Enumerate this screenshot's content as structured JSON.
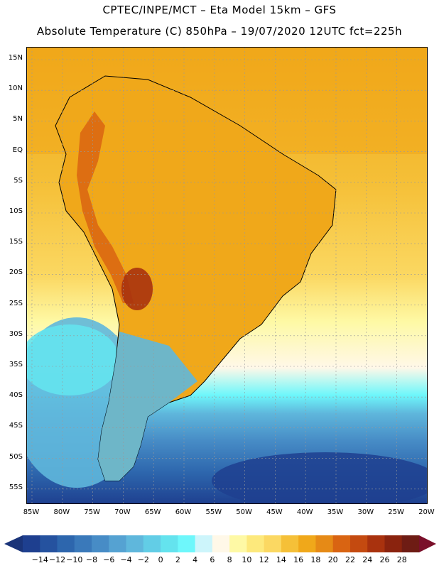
{
  "header": {
    "title_line1": "CPTEC/INPE/MCT –  Eta Model 15km – GFS",
    "title_line2": "Absolute Temperature (C) 850hPa – 19/07/2020 12UTC fct=225h"
  },
  "axes": {
    "latitude_labels": [
      "15N",
      "10N",
      "5N",
      "EQ",
      "5S",
      "10S",
      "15S",
      "20S",
      "25S",
      "30S",
      "35S",
      "40S",
      "45S",
      "50S",
      "55S"
    ],
    "longitude_labels": [
      "85W",
      "80W",
      "75W",
      "70W",
      "65W",
      "60W",
      "55W",
      "50W",
      "45W",
      "40W",
      "35W",
      "30W",
      "25W",
      "20W"
    ],
    "lat_range": [
      -58,
      17
    ],
    "lon_range": [
      -86,
      -20
    ]
  },
  "colorbar": {
    "unit": "C",
    "levels": [
      -14,
      -12,
      -10,
      -8,
      -6,
      -4,
      -2,
      0,
      2,
      4,
      6,
      8,
      10,
      12,
      14,
      16,
      18,
      20,
      22,
      24,
      26,
      28
    ],
    "labels": [
      "−14",
      "−12",
      "−10",
      "−8",
      "−6",
      "−4",
      "−2",
      "0",
      "2",
      "4",
      "6",
      "8",
      "10",
      "12",
      "14",
      "16",
      "18",
      "20",
      "22",
      "24",
      "26",
      "28"
    ],
    "colors": [
      "#1e3f8f",
      "#25529f",
      "#2d66ad",
      "#3a79ba",
      "#478cc6",
      "#55a2d2",
      "#5fb7dc",
      "#62cde6",
      "#64e3ee",
      "#6ef7fb",
      "#cdf5fb",
      "#fff8e8",
      "#fef9a5",
      "#fde97c",
      "#fbd862",
      "#f5c038",
      "#f0a81a",
      "#e68a16",
      "#d96412",
      "#c44a10",
      "#a9320e",
      "#8a230e",
      "#6e1c14"
    ],
    "under_color": "#1a3479",
    "over_color": "#7a0f2a"
  },
  "map": {
    "region": "South America",
    "ocean_warm_color": "#f5c038",
    "land_color": "#f0a81a"
  }
}
